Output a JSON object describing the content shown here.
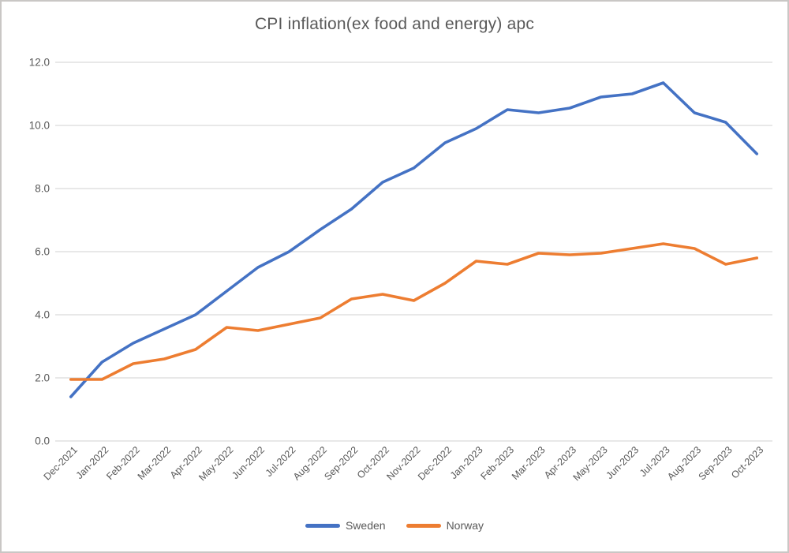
{
  "window": {
    "background": "#ffffff",
    "border_color": "#c9c7c5"
  },
  "chart_data": {
    "type": "line",
    "title": "CPI inflation(ex food and energy) apc",
    "xlabel": "",
    "ylabel": "",
    "ylim": [
      0,
      12
    ],
    "ytick_step": 2,
    "ytick_decimals": 1,
    "grid": true,
    "grid_color": "#d9d9d9",
    "text_color": "#595959",
    "legend_position": "bottom",
    "categories": [
      "Dec-2021",
      "Jan-2022",
      "Feb-2022",
      "Mar-2022",
      "Apr-2022",
      "May-2022",
      "Jun-2022",
      "Jul-2022",
      "Aug-2022",
      "Sep-2022",
      "Oct-2022",
      "Nov-2022",
      "Dec-2022",
      "Jan-2023",
      "Feb-2023",
      "Mar-2023",
      "Apr-2023",
      "May-2023",
      "Jun-2023",
      "Jul-2023",
      "Aug-2023",
      "Sep-2023",
      "Oct-2023"
    ],
    "series": [
      {
        "name": "Sweden",
        "color": "#4472C4",
        "values": [
          1.4,
          2.5,
          3.1,
          3.55,
          4.0,
          4.75,
          5.5,
          6.0,
          6.7,
          7.35,
          8.2,
          8.65,
          9.45,
          9.9,
          10.5,
          10.4,
          10.55,
          10.9,
          11.0,
          11.35,
          10.4,
          10.1,
          9.1
        ]
      },
      {
        "name": "Norway",
        "color": "#ED7D31",
        "values": [
          1.95,
          1.95,
          2.45,
          2.6,
          2.9,
          3.6,
          3.5,
          3.7,
          3.9,
          4.5,
          4.65,
          4.45,
          5.0,
          5.7,
          5.6,
          5.95,
          5.9,
          5.95,
          6.1,
          6.25,
          6.1,
          5.6,
          5.8
        ]
      }
    ]
  }
}
